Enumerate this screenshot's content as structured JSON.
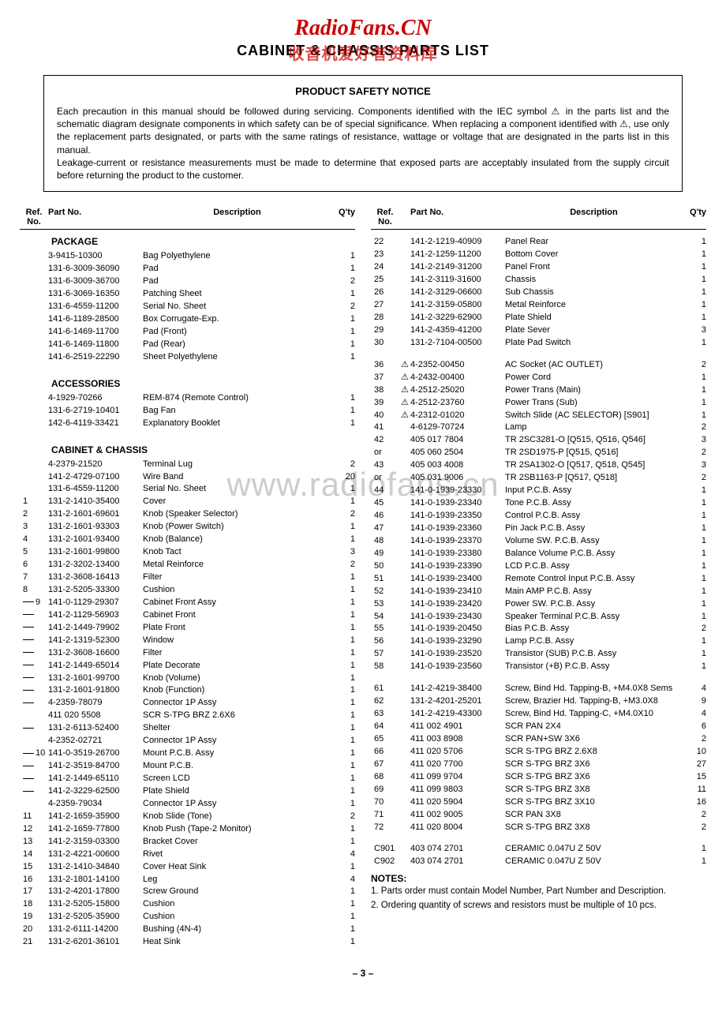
{
  "watermark": {
    "title": "RadioFans.CN",
    "title_color": "#cc0000",
    "sub": "CABINET & CHASSIS PARTS LIST",
    "overlay": "收音机爱好者资料库",
    "overlay_color": "#cc0000",
    "large": "www.radiofans.cn"
  },
  "notice": {
    "title": "PRODUCT SAFETY NOTICE",
    "p1": "Each precaution in this manual should be followed during servicing. Components identified with the IEC symbol ⚠ in the parts list and the schematic diagram designate components in which safety can be of special significance. When replacing a component identified with ⚠, use only the replacement parts designated, or parts with the same ratings of resistance, wattage or voltage that are designated in the parts list in this manual.",
    "p2": "Leakage-current or resistance measurements must be made to determine that exposed parts are acceptably insulated from the supply circuit before returning the product to the customer."
  },
  "headers": {
    "ref": "Ref.\nNo.",
    "part": "Part No.",
    "desc": "Description",
    "qty": "Q'ty"
  },
  "sections_left": [
    {
      "title": "PACKAGE",
      "rows": [
        {
          "ref": "",
          "part": "3-9415-10300",
          "desc": "Bag Polyethylene",
          "qty": "1"
        },
        {
          "ref": "",
          "part": "131-6-3009-36090",
          "desc": "Pad",
          "qty": "1"
        },
        {
          "ref": "",
          "part": "131-6-3009-36700",
          "desc": "Pad",
          "qty": "2"
        },
        {
          "ref": "",
          "part": "131-6-3069-16350",
          "desc": "Patching Sheet",
          "qty": "1"
        },
        {
          "ref": "",
          "part": "131-6-4559-11200",
          "desc": "Serial No. Sheet",
          "qty": "2"
        },
        {
          "ref": "",
          "part": "141-6-1189-28500",
          "desc": "Box Corrugate-Exp.",
          "qty": "1"
        },
        {
          "ref": "",
          "part": "141-6-1469-11700",
          "desc": "Pad (Front)",
          "qty": "1"
        },
        {
          "ref": "",
          "part": "141-6-1469-11800",
          "desc": "Pad (Rear)",
          "qty": "1"
        },
        {
          "ref": "",
          "part": "141-6-2519-22290",
          "desc": "Sheet Polyethylene",
          "qty": "1"
        }
      ]
    },
    {
      "title": "ACCESSORIES",
      "rows": [
        {
          "ref": "",
          "part": "4-1929-70266",
          "desc": "REM-874 (Remote Control)",
          "qty": "1"
        },
        {
          "ref": "",
          "part": "131-6-2719-10401",
          "desc": "Bag Fan",
          "qty": "1"
        },
        {
          "ref": "",
          "part": "142-6-4119-33421",
          "desc": "Explanatory Booklet",
          "qty": "1"
        }
      ]
    },
    {
      "title": "CABINET & CHASSIS",
      "rows": [
        {
          "ref": "",
          "part": "4-2379-21520",
          "desc": "Terminal Lug",
          "qty": "2"
        },
        {
          "ref": "",
          "part": "141-2-4729-07100",
          "desc": "Wire Band",
          "qty": "20"
        },
        {
          "ref": "",
          "part": "131-6-4559-11200",
          "desc": "Serial No. Sheet",
          "qty": "1"
        },
        {
          "ref": "1",
          "part": "131-2-1410-35400",
          "desc": "Cover",
          "qty": "1"
        },
        {
          "ref": "2",
          "part": "131-2-1601-69601",
          "desc": "Knob (Speaker Selector)",
          "qty": "2"
        },
        {
          "ref": "3",
          "part": "131-2-1601-93303",
          "desc": "Knob (Power Switch)",
          "qty": "1"
        },
        {
          "ref": "4",
          "part": "131-2-1601-93400",
          "desc": "Knob (Balance)",
          "qty": "1"
        },
        {
          "ref": "5",
          "part": "131-2-1601-99800",
          "desc": "Knob Tact",
          "qty": "3"
        },
        {
          "ref": "6",
          "part": "131-2-3202-13400",
          "desc": "Metal Reinforce",
          "qty": "2"
        },
        {
          "ref": "7",
          "part": "131-2-3608-16413",
          "desc": "Filter",
          "qty": "1"
        },
        {
          "ref": "8",
          "part": "131-2-5205-33300",
          "desc": "Cushion",
          "qty": "1"
        },
        {
          "ref": "9",
          "tree": true,
          "part": "141-0-1129-29307",
          "desc": "Cabinet Front Assy",
          "qty": "1"
        },
        {
          "ref": "",
          "tree": true,
          "part": "141-2-1129-56903",
          "desc": "Cabinet Front",
          "qty": "1"
        },
        {
          "ref": "",
          "tree": true,
          "part": "141-2-1449-79902",
          "desc": "Plate Front",
          "qty": "1"
        },
        {
          "ref": "",
          "tree": true,
          "part": "141-2-1319-52300",
          "desc": "Window",
          "qty": "1"
        },
        {
          "ref": "",
          "tree": true,
          "part": "131-2-3608-16600",
          "desc": "Filter",
          "qty": "1"
        },
        {
          "ref": "",
          "tree": true,
          "part": "141-2-1449-65014",
          "desc": "Plate Decorate",
          "qty": "1"
        },
        {
          "ref": "",
          "tree": true,
          "part": "131-2-1601-99700",
          "desc": "Knob (Volume)",
          "qty": "1"
        },
        {
          "ref": "",
          "tree": true,
          "part": "131-2-1601-91800",
          "desc": "Knob (Function)",
          "qty": "1"
        },
        {
          "ref": "",
          "tree": true,
          "part": "4-2359-78079",
          "desc": "Connector 1P Assy",
          "qty": "1"
        },
        {
          "ref": "",
          "part": "411 020 5508",
          "desc": "SCR S-TPG BRZ 2.6X6",
          "qty": "1"
        },
        {
          "ref": "",
          "tree": true,
          "part": "131-2-6113-52400",
          "desc": "Shelter",
          "qty": "1"
        },
        {
          "ref": "",
          "part": "4-2352-02721",
          "desc": "Connector 1P Assy",
          "qty": "1"
        },
        {
          "ref": "10",
          "tree": true,
          "part": "141-0-3519-26700",
          "desc": "Mount P.C.B. Assy",
          "qty": "1"
        },
        {
          "ref": "",
          "tree": true,
          "part": "141-2-3519-84700",
          "desc": "Mount P.C.B.",
          "qty": "1"
        },
        {
          "ref": "",
          "tree": true,
          "part": "141-2-1449-65110",
          "desc": "Screen LCD",
          "qty": "1"
        },
        {
          "ref": "",
          "tree": true,
          "part": "141-2-3229-62500",
          "desc": "Plate Shield",
          "qty": "1"
        },
        {
          "ref": "",
          "part": "4-2359-79034",
          "desc": "Connector 1P Assy",
          "qty": "1"
        },
        {
          "ref": "11",
          "part": "141-2-1659-35900",
          "desc": "Knob Slide (Tone)",
          "qty": "2"
        },
        {
          "ref": "12",
          "part": "141-2-1659-77800",
          "desc": "Knob Push (Tape-2 Monitor)",
          "qty": "1"
        },
        {
          "ref": "13",
          "part": "141-2-3159-03300",
          "desc": "Bracket Cover",
          "qty": "1"
        },
        {
          "ref": "14",
          "part": "131-2-4221-00600",
          "desc": "Rivet",
          "qty": "4"
        },
        {
          "ref": "15",
          "part": "131-2-1410-34840",
          "desc": "Cover Heat Sink",
          "qty": "1"
        },
        {
          "ref": "16",
          "part": "131-2-1801-14100",
          "desc": "Leg",
          "qty": "4"
        },
        {
          "ref": "17",
          "part": "131-2-4201-17800",
          "desc": "Screw Ground",
          "qty": "1"
        },
        {
          "ref": "18",
          "part": "131-2-5205-15800",
          "desc": "Cushion",
          "qty": "1"
        },
        {
          "ref": "19",
          "part": "131-2-5205-35900",
          "desc": "Cushion",
          "qty": "1"
        },
        {
          "ref": "20",
          "part": "131-2-6111-14200",
          "desc": "Bushing (4N-4)",
          "qty": "1"
        },
        {
          "ref": "21",
          "part": "131-2-6201-36101",
          "desc": "Heat Sink",
          "qty": "1"
        }
      ]
    }
  ],
  "rows_right": [
    {
      "ref": "22",
      "part": "141-2-1219-40909",
      "desc": "Panel Rear",
      "qty": "1"
    },
    {
      "ref": "23",
      "part": "141-2-1259-11200",
      "desc": "Bottom Cover",
      "qty": "1"
    },
    {
      "ref": "24",
      "part": "141-2-2149-31200",
      "desc": "Panel Front",
      "qty": "1"
    },
    {
      "ref": "25",
      "part": "141-2-3119-31600",
      "desc": "Chassis",
      "qty": "1"
    },
    {
      "ref": "26",
      "part": "141-2-3129-06600",
      "desc": "Sub Chassis",
      "qty": "1"
    },
    {
      "ref": "27",
      "part": "141-2-3159-05800",
      "desc": "Metal Reinforce",
      "qty": "1"
    },
    {
      "ref": "28",
      "part": "141-2-3229-62900",
      "desc": "Plate Shield",
      "qty": "1"
    },
    {
      "ref": "29",
      "part": "141-2-4359-41200",
      "desc": "Plate Sever",
      "qty": "3"
    },
    {
      "ref": "30",
      "part": "131-2-7104-00500",
      "desc": "Plate Pad Switch",
      "qty": "1"
    },
    {
      "blank": true
    },
    {
      "ref": "36",
      "sym": "⚠",
      "part": "4-2352-00450",
      "desc": "AC Socket (AC OUTLET)",
      "qty": "2"
    },
    {
      "ref": "37",
      "sym": "⚠",
      "part": "4-2432-00400",
      "desc": "Power Cord",
      "qty": "1"
    },
    {
      "ref": "38",
      "sym": "⚠",
      "part": "4-2512-25020",
      "desc": "Power Trans (Main)",
      "qty": "1"
    },
    {
      "ref": "39",
      "sym": "⚠",
      "part": "4-2512-23760",
      "desc": "Power Trans (Sub)",
      "qty": "1"
    },
    {
      "ref": "40",
      "sym": "⚠",
      "part": "4-2312-01020",
      "desc": "Switch Slide (AC SELECTOR) [S901]",
      "qty": "1"
    },
    {
      "ref": "41",
      "part": "4-6129-70724",
      "desc": "Lamp",
      "qty": "2"
    },
    {
      "ref": "42",
      "part": "405 017 7804",
      "desc": "TR 2SC3281-O [Q515, Q516, Q546]",
      "qty": "3"
    },
    {
      "ref": "or",
      "part": "405 060 2504",
      "desc": "TR 2SD1975-P [Q515, Q516]",
      "qty": "2"
    },
    {
      "ref": "43",
      "part": "405 003 4008",
      "desc": "TR 2SA1302-O [Q517, Q518, Q545]",
      "qty": "3"
    },
    {
      "ref": "or",
      "part": "405 031 9006",
      "desc": "TR 2SB1163-P [Q517, Q518]",
      "qty": "2"
    },
    {
      "ref": "44",
      "part": "141-0-1939-23330",
      "desc": "Input P.C.B. Assy",
      "qty": "1"
    },
    {
      "ref": "45",
      "part": "141-0-1939-23340",
      "desc": "Tone P.C.B. Assy",
      "qty": "1"
    },
    {
      "ref": "46",
      "part": "141-0-1939-23350",
      "desc": "Control P.C.B. Assy",
      "qty": "1"
    },
    {
      "ref": "47",
      "part": "141-0-1939-23360",
      "desc": "Pin Jack P.C.B. Assy",
      "qty": "1"
    },
    {
      "ref": "48",
      "part": "141-0-1939-23370",
      "desc": "Volume SW. P.C.B. Assy",
      "qty": "1"
    },
    {
      "ref": "49",
      "part": "141-0-1939-23380",
      "desc": "Balance Volume P.C.B. Assy",
      "qty": "1"
    },
    {
      "ref": "50",
      "part": "141-0-1939-23390",
      "desc": "LCD P.C.B. Assy",
      "qty": "1"
    },
    {
      "ref": "51",
      "part": "141-0-1939-23400",
      "desc": "Remote Control Input P.C.B. Assy",
      "qty": "1"
    },
    {
      "ref": "52",
      "part": "141-0-1939-23410",
      "desc": "Main AMP P.C.B. Assy",
      "qty": "1"
    },
    {
      "ref": "53",
      "part": "141-0-1939-23420",
      "desc": "Power SW. P.C.B. Assy",
      "qty": "1"
    },
    {
      "ref": "54",
      "part": "141-0-1939-23430",
      "desc": "Speaker Terminal P.C.B. Assy",
      "qty": "1"
    },
    {
      "ref": "55",
      "part": "141-0-1939-20450",
      "desc": "Bias P.C.B. Assy",
      "qty": "2"
    },
    {
      "ref": "56",
      "part": "141-0-1939-23290",
      "desc": "Lamp P.C.B. Assy",
      "qty": "1"
    },
    {
      "ref": "57",
      "part": "141-0-1939-23520",
      "desc": "Transistor (SUB) P.C.B. Assy",
      "qty": "1"
    },
    {
      "ref": "58",
      "part": "141-0-1939-23560",
      "desc": "Transistor (+B) P.C.B. Assy",
      "qty": "1"
    },
    {
      "blank": true
    },
    {
      "ref": "61",
      "part": "141-2-4219-38400",
      "desc": "Screw, Bind Hd. Tapping-B, +M4.0X8 Sems",
      "qty": "4"
    },
    {
      "ref": "62",
      "part": "131-2-4201-25201",
      "desc": "Screw, Brazier Hd. Tapping-B, +M3.0X8",
      "qty": "9"
    },
    {
      "ref": "63",
      "part": "141-2-4219-43300",
      "desc": "Screw, Bind Hd. Tapping-C, +M4.0X10",
      "qty": "4"
    },
    {
      "ref": "64",
      "part": "411 002 4901",
      "desc": "SCR PAN 2X4",
      "qty": "6"
    },
    {
      "ref": "65",
      "part": "411 003 8908",
      "desc": "SCR PAN+SW 3X6",
      "qty": "2"
    },
    {
      "ref": "66",
      "part": "411 020 5706",
      "desc": "SCR S-TPG BRZ 2.6X8",
      "qty": "10"
    },
    {
      "ref": "67",
      "part": "411 020 7700",
      "desc": "SCR S-TPG BRZ 3X6",
      "qty": "27"
    },
    {
      "ref": "68",
      "part": "411 099 9704",
      "desc": "SCR S-TPG BRZ 3X6",
      "qty": "15"
    },
    {
      "ref": "69",
      "part": "411 099 9803",
      "desc": "SCR S-TPG BRZ 3X8",
      "qty": "11"
    },
    {
      "ref": "70",
      "part": "411 020 5904",
      "desc": "SCR S-TPG BRZ 3X10",
      "qty": "16"
    },
    {
      "ref": "71",
      "part": "411 002 9005",
      "desc": "SCR PAN 3X8",
      "qty": "2"
    },
    {
      "ref": "72",
      "part": "411 020 8004",
      "desc": "SCR S-TPG BRZ 3X8",
      "qty": "2"
    },
    {
      "blank": true
    },
    {
      "ref": "C901",
      "part": "403 074 2701",
      "desc": "CERAMIC 0.047U Z 50V",
      "qty": "1"
    },
    {
      "ref": "C902",
      "part": "403 074 2701",
      "desc": "CERAMIC 0.047U Z 50V",
      "qty": "1"
    }
  ],
  "notes": {
    "title": "NOTES:",
    "n1": "1. Parts order must contain Model Number, Part Number and Description.",
    "n2": "2. Ordering quantity of screws and resistors must be multiple of 10 pcs."
  },
  "page": "– 3 –"
}
